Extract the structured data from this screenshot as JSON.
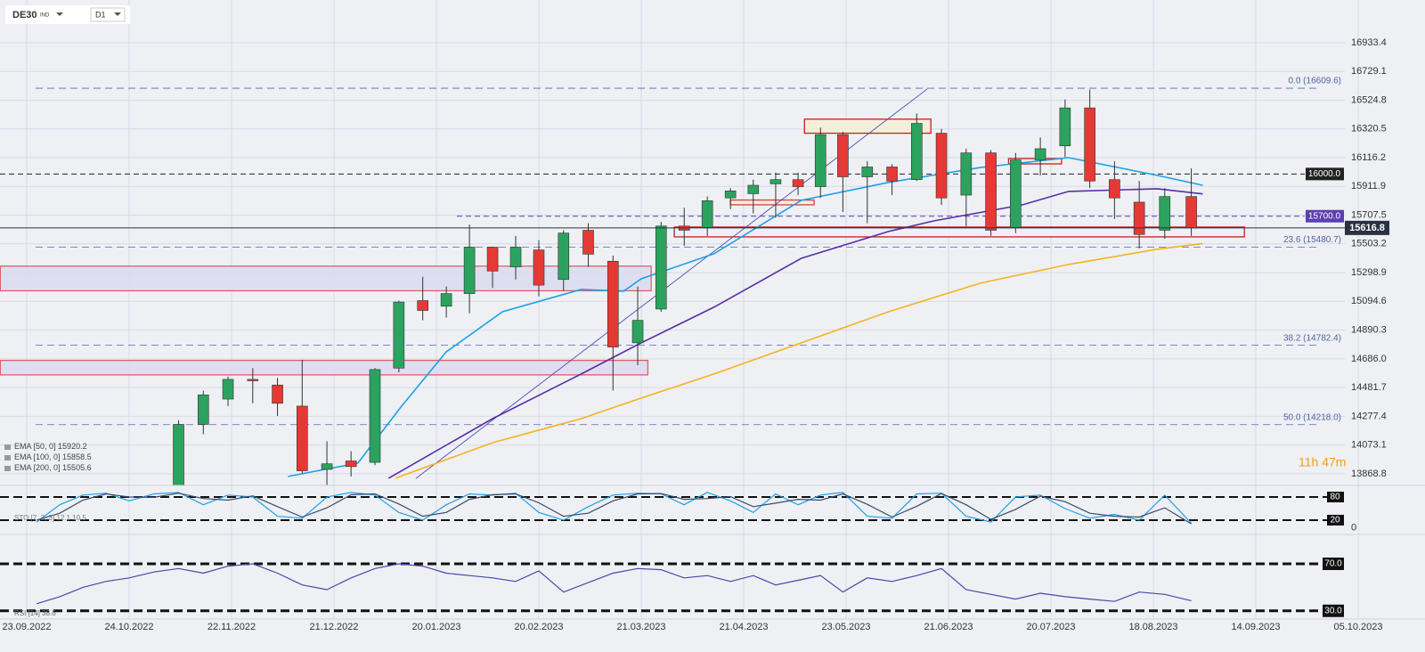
{
  "chart_data": [
    {
      "type": "candlestick",
      "symbol": "DE30",
      "market": "IND",
      "timeframe": "D1",
      "x": [
        "2022-11-07",
        "2022-11-14",
        "2022-11-21",
        "2022-11-28",
        "2022-12-05",
        "2022-12-12",
        "2022-12-19",
        "2022-12-26",
        "2023-01-02",
        "2023-01-09",
        "2023-01-16",
        "2023-01-23",
        "2023-01-30",
        "2023-02-06",
        "2023-02-13",
        "2023-02-20",
        "2023-02-27",
        "2023-03-06",
        "2023-03-13",
        "2023-03-20",
        "2023-03-27",
        "2023-04-03",
        "2023-04-10",
        "2023-04-17",
        "2023-04-24",
        "2023-05-01",
        "2023-05-08",
        "2023-05-15",
        "2023-05-22",
        "2023-05-29",
        "2023-06-05",
        "2023-06-12",
        "2023-06-19",
        "2023-06-26",
        "2023-07-03",
        "2023-07-10",
        "2023-07-17",
        "2023-07-24",
        "2023-07-31",
        "2023-08-07",
        "2023-08-14",
        "2023-08-21",
        "2023-08-28"
      ],
      "open": [
        13700,
        14220,
        14400,
        14540,
        14500,
        14350,
        13900,
        13960,
        13950,
        14620,
        15100,
        15060,
        15150,
        15480,
        15340,
        15460,
        15250,
        15600,
        15380,
        14800,
        15040,
        15630,
        15620,
        15830,
        15860,
        15930,
        15960,
        15910,
        16280,
        15980,
        16050,
        15960,
        16290,
        15850,
        16150,
        15620,
        16100,
        16200,
        16470,
        15960,
        15800,
        15600,
        15840
      ],
      "high": [
        14250,
        14460,
        14560,
        14620,
        14550,
        14680,
        14100,
        14030,
        14620,
        15100,
        15270,
        15200,
        15640,
        15480,
        15560,
        15530,
        15600,
        15650,
        15420,
        15200,
        15660,
        15760,
        15840,
        15900,
        15960,
        16010,
        16010,
        16330,
        16300,
        16090,
        16070,
        16430,
        16320,
        16180,
        16170,
        16150,
        16260,
        16530,
        16600,
        16090,
        15950,
        15900,
        16040
      ],
      "low": [
        13650,
        14150,
        14350,
        14370,
        14280,
        13870,
        13790,
        13850,
        13930,
        14590,
        14960,
        14980,
        15010,
        15190,
        15250,
        15130,
        15170,
        15340,
        14460,
        14640,
        15020,
        15490,
        15560,
        15750,
        15720,
        15690,
        15850,
        15830,
        15730,
        15650,
        15850,
        15950,
        15780,
        15630,
        15560,
        15580,
        15990,
        16120,
        15900,
        15680,
        15470,
        15540,
        15560
      ],
      "close": [
        14220,
        14430,
        14540,
        14530,
        14370,
        13890,
        13940,
        13920,
        14610,
        15090,
        15030,
        15150,
        15480,
        15310,
        15480,
        15210,
        15580,
        15430,
        14770,
        14960,
        15630,
        15600,
        15810,
        15880,
        15920,
        15960,
        15910,
        16280,
        15980,
        16050,
        15950,
        16360,
        15830,
        16150,
        15600,
        16100,
        16180,
        16470,
        15950,
        15830,
        15570,
        15840,
        15616.8
      ],
      "up_color": "#2ca25f",
      "down_color": "#e53935",
      "series": [
        {
          "name": "EMA [50, 0]",
          "color": "#1ea0e6",
          "x": [
            "2022-12-08",
            "2022-12-28",
            "2023-01-10",
            "2023-01-23",
            "2023-02-09",
            "2023-03-04",
            "2023-03-16",
            "2023-03-21",
            "2023-04-12",
            "2023-05-09",
            "2023-06-04",
            "2023-06-30",
            "2023-07-25",
            "2023-08-19",
            "2023-08-31"
          ],
          "values": [
            13850,
            13945,
            14356,
            14736,
            15021,
            15180,
            15167,
            15255,
            15433,
            15813,
            15940,
            16046,
            16116,
            15990,
            15920.2
          ]
        },
        {
          "name": "EMA [100, 0]",
          "color": "#5a2ea6",
          "x": [
            "2023-01-06",
            "2023-02-06",
            "2023-03-04",
            "2023-03-21",
            "2023-04-12",
            "2023-05-09",
            "2023-06-04",
            "2023-06-17",
            "2023-07-12",
            "2023-07-25",
            "2023-08-19",
            "2023-08-31"
          ],
          "values": [
            13837,
            14261,
            14578,
            14800,
            15053,
            15401,
            15591,
            15667,
            15781,
            15876,
            15895,
            15858.5
          ]
        },
        {
          "name": "EMA [200, 0]",
          "color": "#f5b323",
          "x": [
            "2023-01-08",
            "2023-02-06",
            "2023-03-04",
            "2023-03-21",
            "2023-04-12",
            "2023-05-09",
            "2023-06-04",
            "2023-06-30",
            "2023-07-25",
            "2023-08-19",
            "2023-08-31"
          ],
          "values": [
            13837,
            14090,
            14261,
            14407,
            14578,
            14800,
            15021,
            15224,
            15357,
            15465,
            15505.6
          ]
        }
      ],
      "ylim": [
        13786,
        17237
      ],
      "yticks": [
        16933.4,
        16729.1,
        16524.8,
        16320.5,
        16116.2,
        15911.9,
        15707.5,
        15503.2,
        15298.9,
        15094.6,
        14890.3,
        {
          "value": 14686,
          "label": "14686.0"
        },
        14481.7,
        14277.4,
        14073.1,
        13868.8
      ],
      "xticks": [
        {
          "value": "2022-09-23",
          "label": "23.09.2022"
        },
        {
          "value": "2022-10-24",
          "label": "24.10.2022"
        },
        {
          "value": "2022-11-22",
          "label": "22.11.2022"
        },
        {
          "value": "2022-12-21",
          "label": "21.12.2022"
        },
        {
          "value": "2023-01-20",
          "label": "20.01.2023"
        },
        {
          "value": "2023-02-20",
          "label": "20.02.2023"
        },
        {
          "value": "2023-03-21",
          "label": "21.03.2023"
        },
        {
          "value": "2023-04-21",
          "label": "21.04.2023"
        },
        {
          "value": "2023-05-23",
          "label": "23.05.2023"
        },
        {
          "value": "2023-06-21",
          "label": "21.06.2023"
        },
        {
          "value": "2023-07-20",
          "label": "20.07.2023"
        },
        {
          "value": "2023-08-18",
          "label": "18.08.2023"
        },
        {
          "value": "2023-09-14",
          "label": "14.09.2023"
        },
        {
          "value": "2023-10-05",
          "label": "05.10.2023"
        }
      ],
      "grid": true,
      "last_price": 15616.8,
      "levels": [
        {
          "value": 16000,
          "label": "16000.0",
          "color": "#222222"
        },
        {
          "value": 15700,
          "label": "15700.0",
          "color": "#5b3fb0"
        }
      ],
      "fibonacci": [
        {
          "value": 16609.6,
          "label": "0.0 (16609.6)"
        },
        {
          "value": 15480.7,
          "label": "23.6 (15480.7)"
        },
        {
          "value": 14782.4,
          "label": "38.2 (14782.4)"
        },
        {
          "value": 14218,
          "label": "50.0 (14218.0)"
        }
      ],
      "zones": [
        {
          "x": [
            "2022-09-15",
            "2023-03-24"
          ],
          "y": [
            15170,
            15345
          ],
          "fill": "#d9dcef",
          "stroke": "#e06060"
        },
        {
          "x": [
            "2022-09-15",
            "2023-03-23"
          ],
          "y": [
            14572,
            14675
          ],
          "fill": "#d9dcef",
          "stroke": "#e06060"
        },
        {
          "x": [
            "2023-05-10",
            "2023-06-16"
          ],
          "y": [
            16290,
            16390
          ],
          "fill": "#f3efd6",
          "stroke": "#c62020"
        },
        {
          "x": [
            "2023-04-17",
            "2023-05-13"
          ],
          "y": [
            15781,
            15815
          ],
          "fill": "#f3efd6",
          "stroke": "#d04040"
        },
        {
          "x": [
            "2023-07-08",
            "2023-07-23"
          ],
          "y": [
            16072,
            16110
          ],
          "fill": "#f3efd6",
          "stroke": "#c62020"
        },
        {
          "x": [
            "2023-03-31",
            "2023-09-11"
          ],
          "y": [
            15553,
            15623
          ],
          "fill": "#eef0f4",
          "stroke": "#c62020"
        }
      ],
      "trendline": {
        "x": [
          "2023-01-14",
          "2023-06-15"
        ],
        "y": [
          13836,
          16605
        ],
        "color": "#4a4fb0"
      },
      "timer": "11h 47m"
    },
    {
      "type": "line",
      "legend": "STO [7, 3, 3]",
      "x": [
        "2022-09-26",
        "2022-10-03",
        "2022-10-10",
        "2022-10-17",
        "2022-10-24",
        "2022-10-31",
        "2022-11-07",
        "2022-11-14",
        "2022-11-21",
        "2022-11-28",
        "2022-12-05",
        "2022-12-12",
        "2022-12-19",
        "2022-12-26",
        "2023-01-02",
        "2023-01-09",
        "2023-01-16",
        "2023-01-23",
        "2023-01-30",
        "2023-02-06",
        "2023-02-13",
        "2023-02-20",
        "2023-02-27",
        "2023-03-06",
        "2023-03-13",
        "2023-03-20",
        "2023-03-27",
        "2023-04-03",
        "2023-04-10",
        "2023-04-17",
        "2023-04-24",
        "2023-05-01",
        "2023-05-08",
        "2023-05-15",
        "2023-05-22",
        "2023-05-29",
        "2023-06-05",
        "2023-06-12",
        "2023-06-19",
        "2023-06-26",
        "2023-07-03",
        "2023-07-10",
        "2023-07-17",
        "2023-07-24",
        "2023-07-31",
        "2023-08-07",
        "2023-08-14",
        "2023-08-21",
        "2023-08-28"
      ],
      "series": [
        {
          "color": "#1ea0e6",
          "values": [
            15,
            60,
            85,
            90,
            70,
            88,
            92,
            60,
            85,
            80,
            30,
            25,
            80,
            92,
            85,
            40,
            20,
            60,
            88,
            85,
            90,
            40,
            20,
            55,
            85,
            90,
            88,
            60,
            92,
            70,
            40,
            88,
            60,
            85,
            92,
            30,
            25,
            88,
            90,
            30,
            15,
            80,
            85,
            50,
            25,
            35,
            20,
            85,
            12.1
          ]
        },
        {
          "color": "#3a4a6a",
          "values": [
            20,
            38,
            72,
            88,
            80,
            79,
            90,
            76,
            72,
            83,
            55,
            28,
            52,
            86,
            88,
            62,
            30,
            40,
            74,
            86,
            88,
            65,
            30,
            38,
            70,
            88,
            89,
            74,
            76,
            81,
            55,
            64,
            74,
            72,
            88,
            61,
            28,
            56,
            89,
            60,
            22,
            48,
            82,
            68,
            38,
            30,
            28,
            52,
            10.5
          ]
        }
      ],
      "ylim": [
        -17,
        110
      ],
      "yticks": [
        0
      ],
      "levels": [
        80,
        20
      ]
    },
    {
      "type": "line",
      "legend": "RSI [14]",
      "x": [
        "2022-09-26",
        "2022-10-03",
        "2022-10-10",
        "2022-10-17",
        "2022-10-24",
        "2022-10-31",
        "2022-11-07",
        "2022-11-14",
        "2022-11-21",
        "2022-11-28",
        "2022-12-05",
        "2022-12-12",
        "2022-12-19",
        "2022-12-26",
        "2023-01-02",
        "2023-01-09",
        "2023-01-16",
        "2023-01-23",
        "2023-01-30",
        "2023-02-06",
        "2023-02-13",
        "2023-02-20",
        "2023-02-27",
        "2023-03-06",
        "2023-03-13",
        "2023-03-20",
        "2023-03-27",
        "2023-04-03",
        "2023-04-10",
        "2023-04-17",
        "2023-04-24",
        "2023-05-01",
        "2023-05-08",
        "2023-05-15",
        "2023-05-22",
        "2023-05-29",
        "2023-06-05",
        "2023-06-12",
        "2023-06-19",
        "2023-06-26",
        "2023-07-03",
        "2023-07-10",
        "2023-07-17",
        "2023-07-24",
        "2023-07-31",
        "2023-08-07",
        "2023-08-14",
        "2023-08-21",
        "2023-08-28"
      ],
      "series": [
        {
          "color": "#4b46a8",
          "values": [
            36,
            42,
            50,
            55,
            58,
            63,
            66,
            62,
            68,
            70,
            62,
            52,
            48,
            58,
            66,
            70,
            68,
            62,
            60,
            58,
            55,
            64,
            46,
            54,
            62,
            66,
            65,
            58,
            60,
            55,
            60,
            52,
            56,
            60,
            46,
            58,
            55,
            60,
            66,
            48,
            44,
            40,
            45,
            42,
            40,
            38,
            46,
            44,
            38.6
          ]
        }
      ],
      "ylim": [
        23,
        95
      ],
      "levels": [
        {
          "value": 70,
          "label": "70.0"
        },
        {
          "value": 30,
          "label": "30.0"
        }
      ]
    }
  ]
}
